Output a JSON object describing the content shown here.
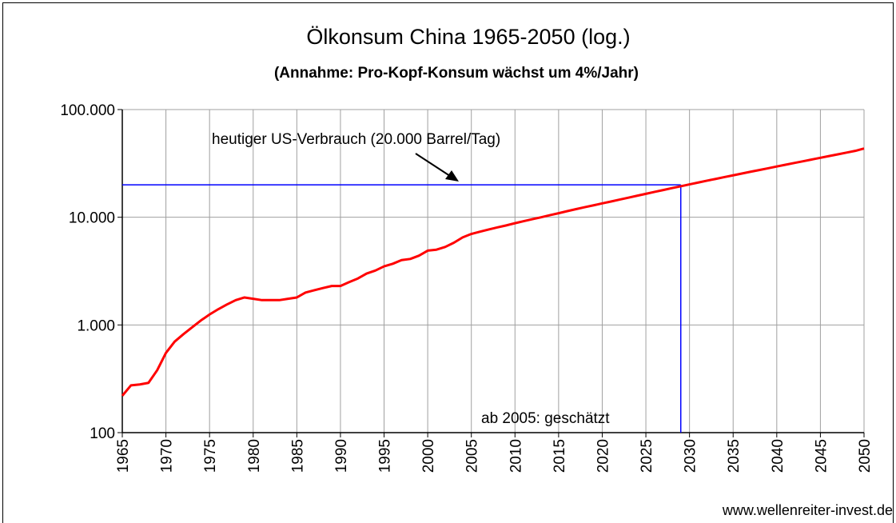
{
  "chart_data": {
    "type": "line",
    "title": "Ölkonsum China 1965-2050 (log.)",
    "subtitle": "(Annahme: Pro-Kopf-Konsum wächst um 4%/Jahr)",
    "x": [
      1965,
      1966,
      1967,
      1968,
      1969,
      1970,
      1971,
      1972,
      1973,
      1974,
      1975,
      1976,
      1977,
      1978,
      1979,
      1980,
      1981,
      1982,
      1983,
      1984,
      1985,
      1986,
      1987,
      1988,
      1989,
      1990,
      1991,
      1992,
      1993,
      1994,
      1995,
      1996,
      1997,
      1998,
      1999,
      2000,
      2001,
      2002,
      2003,
      2004,
      2005,
      2006,
      2007,
      2008,
      2009,
      2010,
      2011,
      2012,
      2013,
      2014,
      2015,
      2016,
      2017,
      2018,
      2019,
      2020,
      2021,
      2022,
      2023,
      2024,
      2025,
      2026,
      2027,
      2028,
      2029,
      2030,
      2031,
      2032,
      2033,
      2034,
      2035,
      2036,
      2037,
      2038,
      2039,
      2040,
      2041,
      2042,
      2043,
      2044,
      2045,
      2046,
      2047,
      2048,
      2049,
      2050
    ],
    "series": [
      {
        "name": "Ölkonsum China",
        "color": "#ff0000",
        "values": [
          220,
          275,
          280,
          290,
          380,
          550,
          700,
          820,
          950,
          1100,
          1250,
          1400,
          1550,
          1700,
          1800,
          1750,
          1700,
          1700,
          1700,
          1750,
          1800,
          2000,
          2100,
          2200,
          2300,
          2300,
          2500,
          2700,
          3000,
          3200,
          3500,
          3700,
          4000,
          4100,
          4400,
          4900,
          5000,
          5300,
          5800,
          6500,
          7000,
          7350,
          7700,
          8050,
          8400,
          8800,
          9200,
          9600,
          10000,
          10450,
          10900,
          11400,
          11900,
          12400,
          12900,
          13450,
          14000,
          14600,
          15200,
          15850,
          16500,
          17200,
          17900,
          18650,
          19400,
          20200,
          21000,
          21850,
          22700,
          23600,
          24500,
          25450,
          26450,
          27450,
          28500,
          29600,
          30750,
          31900,
          33100,
          34350,
          35650,
          37000,
          38400,
          39850,
          41350,
          43500
        ]
      }
    ],
    "xlim": [
      1965,
      2050
    ],
    "xticks": [
      1965,
      1970,
      1975,
      1980,
      1985,
      1990,
      1995,
      2000,
      2005,
      2010,
      2015,
      2020,
      2025,
      2030,
      2035,
      2040,
      2045,
      2050
    ],
    "ylim": [
      100,
      100000
    ],
    "yticks": [
      100,
      {
        "value": 1000,
        "label": "1.000"
      },
      {
        "value": 10000,
        "label": "10.000"
      },
      {
        "value": 100000,
        "label": "100.000"
      }
    ],
    "log_scale_y": true,
    "grid": true,
    "reference_y": 20000,
    "reference_x": 2029,
    "reference_color": "#0000ff",
    "annotations": [
      "heutiger US-Verbrauch (20.000 Barrel/Tag)",
      "ab 2005:  geschätzt"
    ],
    "source": "www.wellenreiter-invest.de"
  }
}
